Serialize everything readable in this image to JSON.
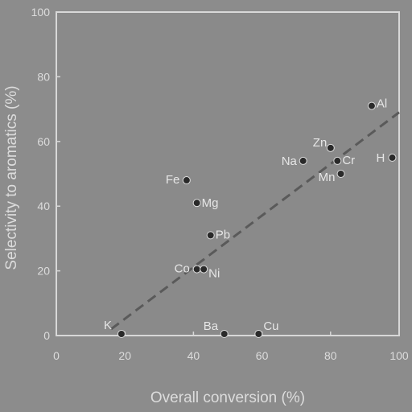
{
  "chart_data": {
    "type": "scatter",
    "xlabel": "Overall conversion (%)",
    "ylabel": "Selectivity to aromatics (%)",
    "xlim": [
      0,
      100
    ],
    "ylim": [
      0,
      100
    ],
    "xticks": [
      "0",
      "20",
      "40",
      "60",
      "80",
      "100"
    ],
    "yticks": [
      "0",
      "20",
      "40",
      "60",
      "80",
      "100"
    ],
    "grid": false,
    "points": [
      {
        "label": "K",
        "x": 19,
        "y": 0.5
      },
      {
        "label": "Ba",
        "x": 49,
        "y": 0.5
      },
      {
        "label": "Cu",
        "x": 59,
        "y": 0.5
      },
      {
        "label": "Co",
        "x": 41,
        "y": 20.5
      },
      {
        "label": "Ni",
        "x": 43,
        "y": 20.5
      },
      {
        "label": "Pb",
        "x": 45,
        "y": 31
      },
      {
        "label": "Mg",
        "x": 41,
        "y": 41
      },
      {
        "label": "Fe",
        "x": 38,
        "y": 48
      },
      {
        "label": "Na",
        "x": 72,
        "y": 54
      },
      {
        "label": "Zn",
        "x": 80,
        "y": 58
      },
      {
        "label": "Cr",
        "x": 82,
        "y": 54
      },
      {
        "label": "Mn",
        "x": 83,
        "y": 50
      },
      {
        "label": "H",
        "x": 98,
        "y": 55
      },
      {
        "label": "Al",
        "x": 92,
        "y": 71
      }
    ],
    "trendline": {
      "x": [
        16,
        100
      ],
      "y": [
        2,
        69
      ]
    }
  }
}
